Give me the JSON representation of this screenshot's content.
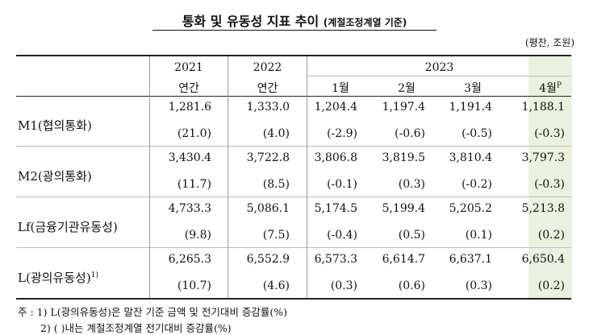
{
  "title": {
    "main": "통화 및 유동성 지표 추이",
    "sub": "(계절조정계열 기준)"
  },
  "unit": "(평잔, 조원)",
  "header": {
    "years": [
      "2021",
      "2022",
      "2023"
    ],
    "cols": [
      "연간",
      "연간",
      "1월",
      "2월",
      "3월",
      "4월"
    ],
    "superscript": "P"
  },
  "rows": [
    {
      "label": "M1(협의통화)",
      "note": "",
      "values": [
        "1,281.6",
        "1,333.0",
        "1,204.4",
        "1,197.4",
        "1,191.4",
        "1,188.1"
      ],
      "rates": [
        "(21.0)",
        "(4.0)",
        "(-2.9)",
        "(-0.6)",
        "(-0.5)",
        "(-0.3)"
      ]
    },
    {
      "label": "M2(광의통화)",
      "note": "",
      "values": [
        "3,430.4",
        "3,722.8",
        "3,806.8",
        "3,819.5",
        "3,810.4",
        "3,797.3"
      ],
      "rates": [
        "(11.7)",
        "(8.5)",
        "(-0.1)",
        "(0.3)",
        "(-0.2)",
        "(-0.3)"
      ]
    },
    {
      "label": "Lf(금융기관유동성)",
      "note": "",
      "values": [
        "4,733.3",
        "5,086.1",
        "5,174.5",
        "5,199.4",
        "5,205.2",
        "5,213.8"
      ],
      "rates": [
        "(9.8)",
        "(7.5)",
        "(-0.4)",
        "(0.5)",
        "(0.1)",
        "(0.2)"
      ]
    },
    {
      "label": "L(광의유동성)",
      "note": "1)",
      "values": [
        "6,265.3",
        "6,552.9",
        "6,573.3",
        "6,614.7",
        "6,637.1",
        "6,650.4"
      ],
      "rates": [
        "(10.7)",
        "(4.6)",
        "(0.3)",
        "(0.6)",
        "(0.3)",
        "(0.2)"
      ]
    }
  ],
  "footnotes": [
    "주 : 1) L(광의유동성)은 말잔 기준 금액 및 전기대비 증감률(%)",
    "2) (    )내는 계절조정계열 전기대비 증감률(%)"
  ]
}
